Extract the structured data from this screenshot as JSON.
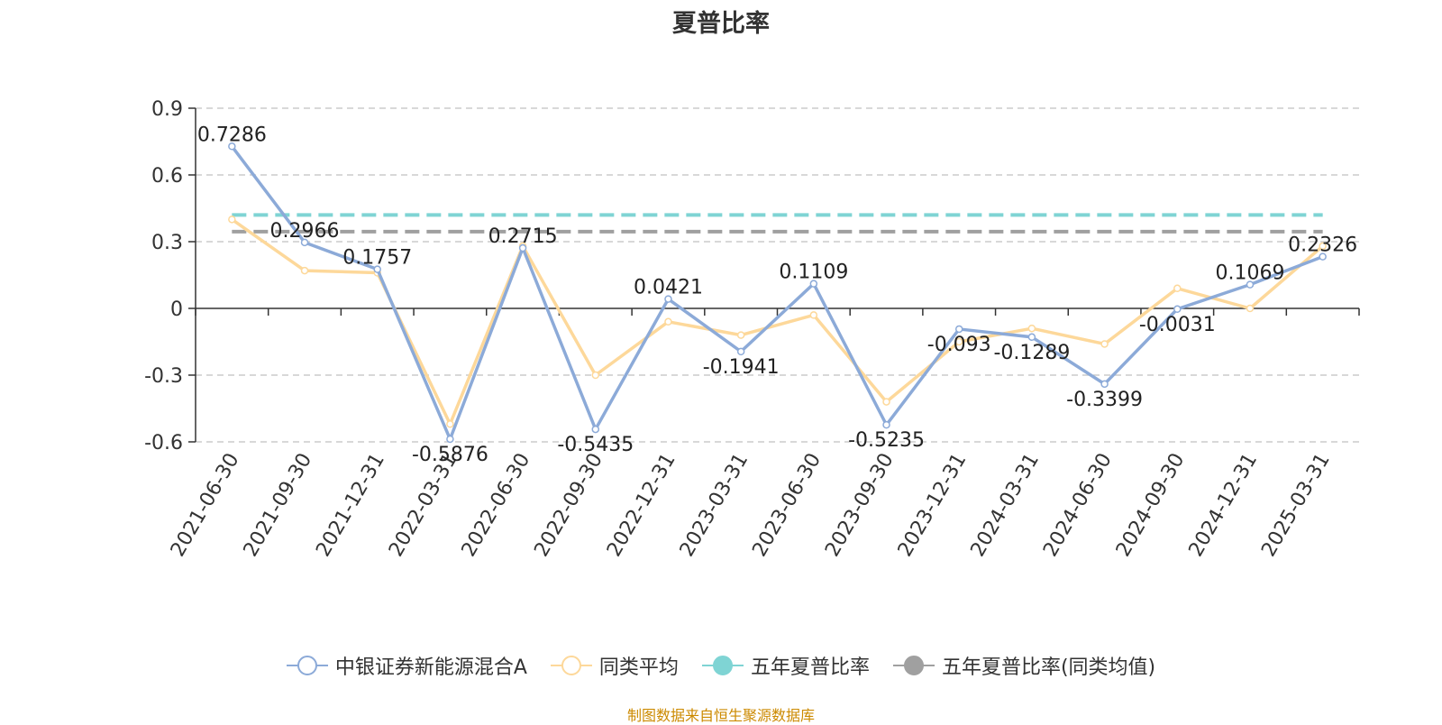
{
  "chart_data": {
    "type": "line",
    "title": "夏普比率",
    "categories": [
      "2021-06-30",
      "2021-09-30",
      "2021-12-31",
      "2022-03-31",
      "2022-06-30",
      "2022-09-30",
      "2022-12-31",
      "2023-03-31",
      "2023-06-30",
      "2023-09-30",
      "2023-12-31",
      "2024-03-31",
      "2024-06-30",
      "2024-09-30",
      "2024-12-31",
      "2025-03-31"
    ],
    "ylim": [
      -0.6,
      0.9
    ],
    "yticks": [
      "0.9",
      "0.6",
      "0.3",
      "0",
      "-0.3",
      "-0.6"
    ],
    "grid": true,
    "legend_position": "bottom",
    "series": [
      {
        "name": "中银证券新能源混合A",
        "color": "#8caad8",
        "marker": "circle-hollow",
        "values": [
          0.7286,
          0.2966,
          0.1757,
          -0.5876,
          0.2715,
          -0.5435,
          0.0421,
          -0.1941,
          0.1109,
          -0.5235,
          -0.093,
          -0.1289,
          -0.3399,
          -0.0031,
          0.1069,
          0.2326
        ],
        "labels": [
          "0.7286",
          "0.2966",
          "0.1757",
          "-0.5876",
          "0.2715",
          "-0.5435",
          "0.0421",
          "-0.1941",
          "0.1109",
          "-0.5235",
          "-0.093",
          "-0.1289",
          "-0.3399",
          "-0.0031",
          "0.1069",
          "0.2326"
        ]
      },
      {
        "name": "同类平均",
        "color": "#fdd89a",
        "marker": "circle-hollow",
        "values": [
          0.4,
          0.17,
          0.16,
          -0.52,
          0.28,
          -0.3,
          -0.06,
          -0.12,
          -0.03,
          -0.42,
          -0.15,
          -0.09,
          -0.16,
          0.09,
          0.0,
          0.28
        ]
      },
      {
        "name": "五年夏普比率",
        "color": "#7fd4d4",
        "marker": "circle-filled",
        "line_style": "dashed",
        "value": 0.42
      },
      {
        "name": "五年夏普比率(同类均值)",
        "color": "#a0a0a0",
        "marker": "circle-filled",
        "line_style": "dashed",
        "value": 0.345
      }
    ]
  },
  "footer": {
    "source": "制图数据来自恒生聚源数据库"
  }
}
